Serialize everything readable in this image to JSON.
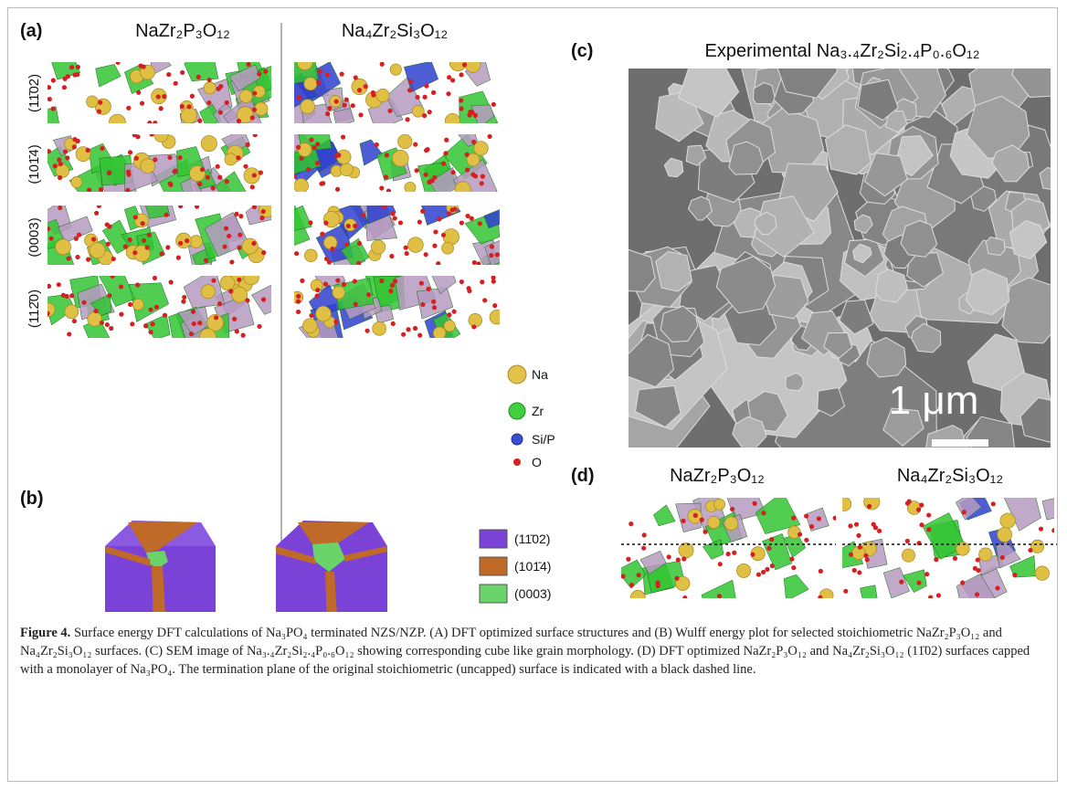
{
  "panel_a": {
    "label": "(a)",
    "headings": [
      "NaZr₂P₃O₁₂",
      "Na₄Zr₂Si₃O₁₂"
    ],
    "facets": [
      "(11̄02)",
      "(101̄4)",
      "(0003)",
      "(112̄0)"
    ],
    "legend": [
      "Na",
      "Zr",
      "Si/P",
      "O"
    ]
  },
  "panel_b": {
    "label": "(b)",
    "legend": [
      "(11̄02)",
      "(101̄4)",
      "(0003)"
    ]
  },
  "panel_c": {
    "label": "(c)",
    "title": "Experimental Na₃.₄Zr₂Si₂.₄P₀.₆O₁₂",
    "scale_bar": "1 μm"
  },
  "panel_d": {
    "label": "(d)",
    "headings": [
      "NaZr₂P₃O₁₂",
      "Na₄Zr₂Si₃O₁₂"
    ]
  },
  "caption": {
    "label": "Figure 4.",
    "text": "Surface energy DFT calculations of Na₃PO₄ terminated NZS/NZP. (A) DFT optimized surface structures and (B) Wulff energy plot for selected stoichiometric NaZr₂P₃O₁₂ and Na₄Zr₂Si₃O₁₂ surfaces. (C) SEM image of Na₃.₄Zr₂Si₂.₄P₀.₆O₁₂ showing corresponding cube like grain morphology. (D) DFT optimized NaZr₂P₃O₁₂ and Na₄Zr₂Si₃O₁₂ (11̄02) surfaces capped with a monolayer of Na₃PO₄. The termination plane of the original stoichiometric (uncapped) surface is indicated with a black dashed line."
  }
}
